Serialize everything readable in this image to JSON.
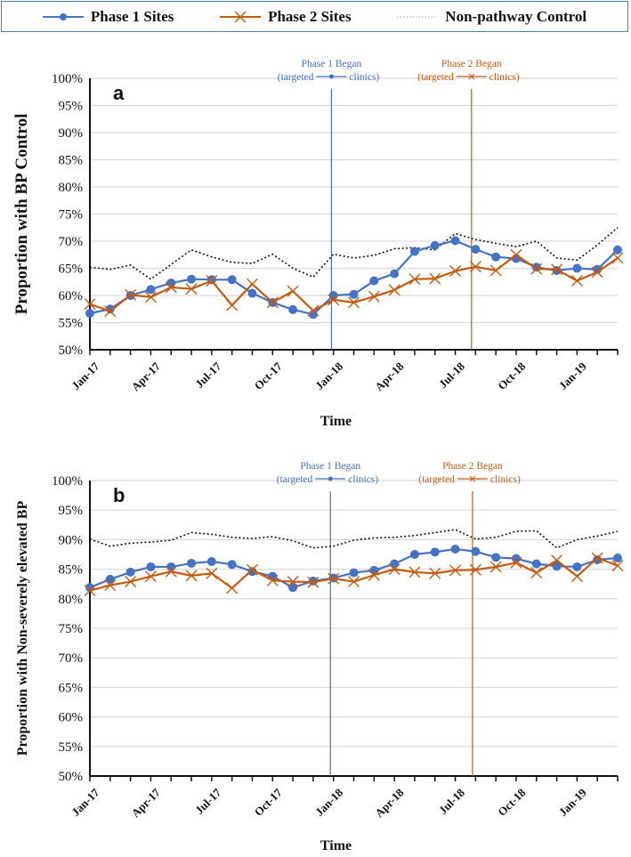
{
  "legend": {
    "items": [
      {
        "label": "Phase 1 Sites",
        "color": "#4472C4",
        "marker": "circle",
        "style": "solid"
      },
      {
        "label": "Phase 2 Sites",
        "color": "#C55A11",
        "marker": "x",
        "style": "solid"
      },
      {
        "label": "Non-pathway Control",
        "color": "#111111",
        "marker": "none",
        "style": "dotted"
      }
    ]
  },
  "chart_data": [
    {
      "type": "line",
      "panel_label": "a",
      "xlabel": "Time",
      "ylabel": "Proportion with BP Control",
      "ylim": [
        0.5,
        1.0
      ],
      "yticks": [
        "50%",
        "55%",
        "60%",
        "65%",
        "70%",
        "75%",
        "80%",
        "85%",
        "90%",
        "95%",
        "100%"
      ],
      "x": [
        "Jan-17",
        "Feb-17",
        "Mar-17",
        "Apr-17",
        "May-17",
        "Jun-17",
        "Jul-17",
        "Aug-17",
        "Sep-17",
        "Oct-17",
        "Nov-17",
        "Dec-17",
        "Jan-18",
        "Feb-18",
        "Mar-18",
        "Apr-18",
        "May-18",
        "Jun-18",
        "Jul-18",
        "Aug-18",
        "Sep-18",
        "Oct-18",
        "Nov-18",
        "Dec-18",
        "Jan-19",
        "Feb-19",
        "Mar-19"
      ],
      "xtick_labels": [
        "Jan-17",
        "Apr-17",
        "Jul-17",
        "Oct-17",
        "Jan-18",
        "Apr-18",
        "Jul-18",
        "Oct-18",
        "Jan-19"
      ],
      "grid": true,
      "series": [
        {
          "name": "Phase 1 Sites",
          "values": [
            56.7,
            57.5,
            60.0,
            61.1,
            62.3,
            63.0,
            62.9,
            62.9,
            60.4,
            58.7,
            57.4,
            56.5,
            60.0,
            60.2,
            62.7,
            64.0,
            68.1,
            69.2,
            70.1,
            68.5,
            67.1,
            66.8,
            65.2,
            64.6,
            65.0,
            64.8,
            68.4
          ]
        },
        {
          "name": "Phase 2 Sites",
          "values": [
            58.4,
            57.1,
            60.1,
            59.7,
            61.5,
            61.2,
            62.7,
            58.2,
            62.1,
            58.7,
            60.8,
            57.2,
            59.2,
            58.7,
            59.8,
            61.0,
            63.0,
            63.1,
            64.5,
            65.3,
            64.6,
            67.5,
            64.9,
            64.8,
            62.7,
            64.3,
            66.9
          ]
        },
        {
          "name": "Non-pathway Control",
          "values": [
            65.2,
            64.8,
            65.6,
            63.0,
            65.7,
            68.4,
            67.1,
            66.1,
            65.9,
            67.6,
            65.0,
            63.4,
            67.6,
            66.9,
            67.4,
            68.6,
            68.8,
            68.4,
            71.4,
            70.3,
            69.6,
            69.0,
            70.0,
            66.9,
            66.5,
            69.3,
            72.5
          ]
        }
      ],
      "annotations": [
        {
          "line1": "Phase 1 Began",
          "line2a": "(targeted",
          "line2b": "clinics)",
          "at_index": 11.9,
          "color": "#4472C4",
          "marker": "circle"
        },
        {
          "line1": "Phase 2 Began",
          "line2a": "(targeted",
          "line2b": "clinics)",
          "at_index": 18.8,
          "color": "#C55A11",
          "marker": "x"
        }
      ]
    },
    {
      "type": "line",
      "panel_label": "b",
      "xlabel": "Time",
      "ylabel": "Proportion  with  Non-severely elevated BP",
      "ylim": [
        0.5,
        1.0
      ],
      "yticks": [
        "50%",
        "55%",
        "60%",
        "65%",
        "70%",
        "75%",
        "80%",
        "85%",
        "90%",
        "95%",
        "100%"
      ],
      "x": [
        "Jan-17",
        "Feb-17",
        "Mar-17",
        "Apr-17",
        "May-17",
        "Jun-17",
        "Jul-17",
        "Aug-17",
        "Sep-17",
        "Oct-17",
        "Nov-17",
        "Dec-17",
        "Jan-18",
        "Feb-18",
        "Mar-18",
        "Apr-18",
        "May-18",
        "Jun-18",
        "Jul-18",
        "Aug-18",
        "Sep-18",
        "Oct-18",
        "Nov-18",
        "Dec-18",
        "Jan-19",
        "Feb-19",
        "Mar-19"
      ],
      "xtick_labels": [
        "Jan-17",
        "Apr-17",
        "Jul-17",
        "Oct-17",
        "Jan-18",
        "Apr-18",
        "Jul-18",
        "Oct-18",
        "Jan-19"
      ],
      "grid": true,
      "series": [
        {
          "name": "Phase 1 Sites",
          "values": [
            81.9,
            83.3,
            84.5,
            85.4,
            85.4,
            86.0,
            86.3,
            85.8,
            84.6,
            83.8,
            81.9,
            83.0,
            83.5,
            84.4,
            84.8,
            85.9,
            87.5,
            87.9,
            88.4,
            88.0,
            87.0,
            86.8,
            85.9,
            85.5,
            85.4,
            86.6,
            86.9
          ]
        },
        {
          "name": "Phase 2 Sites",
          "values": [
            81.4,
            82.3,
            82.9,
            83.8,
            84.6,
            83.9,
            84.3,
            81.8,
            84.9,
            83.1,
            82.9,
            82.8,
            83.4,
            82.9,
            84.0,
            85.0,
            84.5,
            84.3,
            84.8,
            84.9,
            85.4,
            86.1,
            84.4,
            86.5,
            83.8,
            86.9,
            85.6
          ]
        },
        {
          "name": "Non-pathway Control",
          "values": [
            90.1,
            88.9,
            89.4,
            89.6,
            89.9,
            91.2,
            90.9,
            90.4,
            90.2,
            90.5,
            89.8,
            88.6,
            88.9,
            89.9,
            90.3,
            90.4,
            90.7,
            91.2,
            91.7,
            90.1,
            90.4,
            91.4,
            91.5,
            88.6,
            90.0,
            90.6,
            91.4
          ]
        }
      ],
      "annotations": [
        {
          "line1": "Phase 1 Began",
          "line2a": "(targeted",
          "line2b": "clinics)",
          "at_index": 11.85,
          "color": "#4472C4",
          "marker": "circle"
        },
        {
          "line1": "Phase 2 Began",
          "line2a": "(targeted",
          "line2b": "clinics)",
          "at_index": 18.85,
          "color": "#C55A11",
          "marker": "x"
        }
      ]
    }
  ]
}
